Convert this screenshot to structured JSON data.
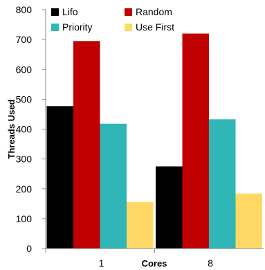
{
  "chart_data": {
    "type": "bar",
    "categories": [
      "1",
      "8"
    ],
    "series": [
      {
        "name": "Lifo",
        "color": "#000000",
        "values": [
          477,
          275
        ]
      },
      {
        "name": "Random",
        "color": "#c00000",
        "values": [
          695,
          720
        ]
      },
      {
        "name": "Priority",
        "color": "#31b6b8",
        "values": [
          418,
          433
        ]
      },
      {
        "name": "Use First",
        "color": "#ffd966",
        "values": [
          156,
          184
        ]
      }
    ],
    "xlabel": "Cores",
    "ylabel": "Threads Used",
    "ylim": [
      0,
      800
    ],
    "yticks": [
      0,
      100,
      200,
      300,
      400,
      500,
      600,
      700,
      800
    ],
    "grid": false,
    "legend": {
      "position": "top-left",
      "columns": 2
    }
  }
}
